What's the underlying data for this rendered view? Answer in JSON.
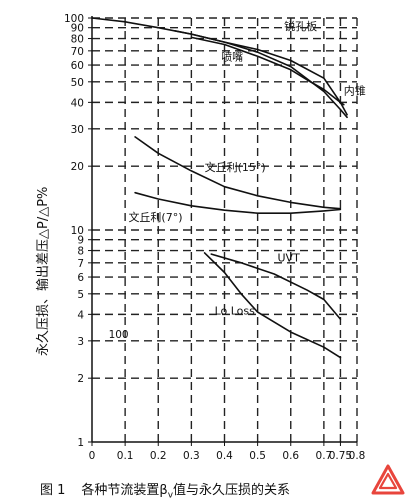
{
  "chart_data": {
    "type": "line",
    "xlabel": "",
    "ylabel": "永久压损、输出差压△P/△P%",
    "xlim": [
      0,
      0.8
    ],
    "ylim": [
      1,
      100
    ],
    "y_scale": "log",
    "x_ticks": [
      "0",
      "0.1",
      "0.2",
      "0.3",
      "0.4",
      "0.5",
      "0.6",
      "0.7",
      "0.75",
      "0.8"
    ],
    "x_tick_values": [
      0,
      0.1,
      0.2,
      0.3,
      0.4,
      0.5,
      0.6,
      0.7,
      0.75,
      0.8
    ],
    "y_ticks": [
      "1",
      "2",
      "3",
      "4",
      "5",
      "6",
      "7",
      "8",
      "9",
      "10",
      "20",
      "30",
      "40",
      "50",
      "60",
      "70",
      "80",
      "90",
      "100"
    ],
    "y_tick_values": [
      1,
      2,
      3,
      4,
      5,
      6,
      7,
      8,
      9,
      10,
      20,
      30,
      40,
      50,
      60,
      70,
      80,
      90,
      100
    ],
    "grid": true,
    "series": [
      {
        "name": "锐孔板",
        "label_x": 0.58,
        "label_y": 88,
        "points": [
          [
            0,
            100
          ],
          [
            0.1,
            96
          ],
          [
            0.2,
            90
          ],
          [
            0.3,
            84
          ],
          [
            0.4,
            77
          ],
          [
            0.5,
            71
          ],
          [
            0.6,
            63
          ],
          [
            0.7,
            52
          ],
          [
            0.75,
            40
          ],
          [
            0.77,
            35
          ]
        ]
      },
      {
        "name": "喷嘴",
        "label_x": 0.39,
        "label_y": 63,
        "points": [
          [
            0.25,
            87
          ],
          [
            0.3,
            84
          ],
          [
            0.4,
            77
          ],
          [
            0.5,
            69
          ],
          [
            0.6,
            59
          ],
          [
            0.7,
            45
          ],
          [
            0.75,
            37
          ],
          [
            0.77,
            34
          ]
        ]
      },
      {
        "name": "内锥",
        "label_x": 0.76,
        "label_y": 43.5,
        "points": [
          [
            0.3,
            81
          ],
          [
            0.4,
            75
          ],
          [
            0.5,
            66
          ],
          [
            0.6,
            57
          ],
          [
            0.65,
            51
          ],
          [
            0.7,
            46
          ],
          [
            0.75,
            40
          ],
          [
            0.76,
            39
          ]
        ]
      },
      {
        "name": "文丘利(15°)",
        "label_x": 0.34,
        "label_y": 19,
        "points": [
          [
            0.13,
            27.5
          ],
          [
            0.2,
            23
          ],
          [
            0.3,
            19
          ],
          [
            0.4,
            16
          ],
          [
            0.5,
            14.5
          ],
          [
            0.6,
            13.5
          ],
          [
            0.7,
            12.8
          ],
          [
            0.75,
            12.6
          ]
        ]
      },
      {
        "name": "文丘利(7°)",
        "label_x": 0.11,
        "label_y": 11,
        "points": [
          [
            0.13,
            15
          ],
          [
            0.2,
            14
          ],
          [
            0.3,
            13
          ],
          [
            0.4,
            12.4
          ],
          [
            0.5,
            12
          ],
          [
            0.6,
            12
          ],
          [
            0.7,
            12.3
          ],
          [
            0.75,
            12.5
          ]
        ]
      },
      {
        "name": "UVT",
        "label_x": 0.56,
        "label_y": 7.1,
        "points": [
          [
            0.36,
            7.7
          ],
          [
            0.45,
            7
          ],
          [
            0.55,
            6.2
          ],
          [
            0.65,
            5.2
          ],
          [
            0.7,
            4.7
          ],
          [
            0.75,
            3.8
          ]
        ]
      },
      {
        "name": "Lo Loss",
        "label_x": 0.37,
        "label_y": 4,
        "points": [
          [
            0.34,
            7.8
          ],
          [
            0.4,
            6.3
          ],
          [
            0.45,
            5
          ],
          [
            0.5,
            4.1
          ],
          [
            0.6,
            3.3
          ],
          [
            0.7,
            2.8
          ],
          [
            0.75,
            2.5
          ]
        ]
      }
    ],
    "annotations": [
      {
        "text": "100",
        "x": 0.05,
        "y": 3.1
      }
    ]
  },
  "caption": {
    "number": "图 1",
    "text": "各种节流装置β",
    "subscript": "v",
    "text_after": "值与永久压损的关系"
  },
  "colors": {
    "line": "#111111",
    "grid": "#222222",
    "logo": "#e8453c"
  },
  "logo_icon": "warning-triangle-logo"
}
